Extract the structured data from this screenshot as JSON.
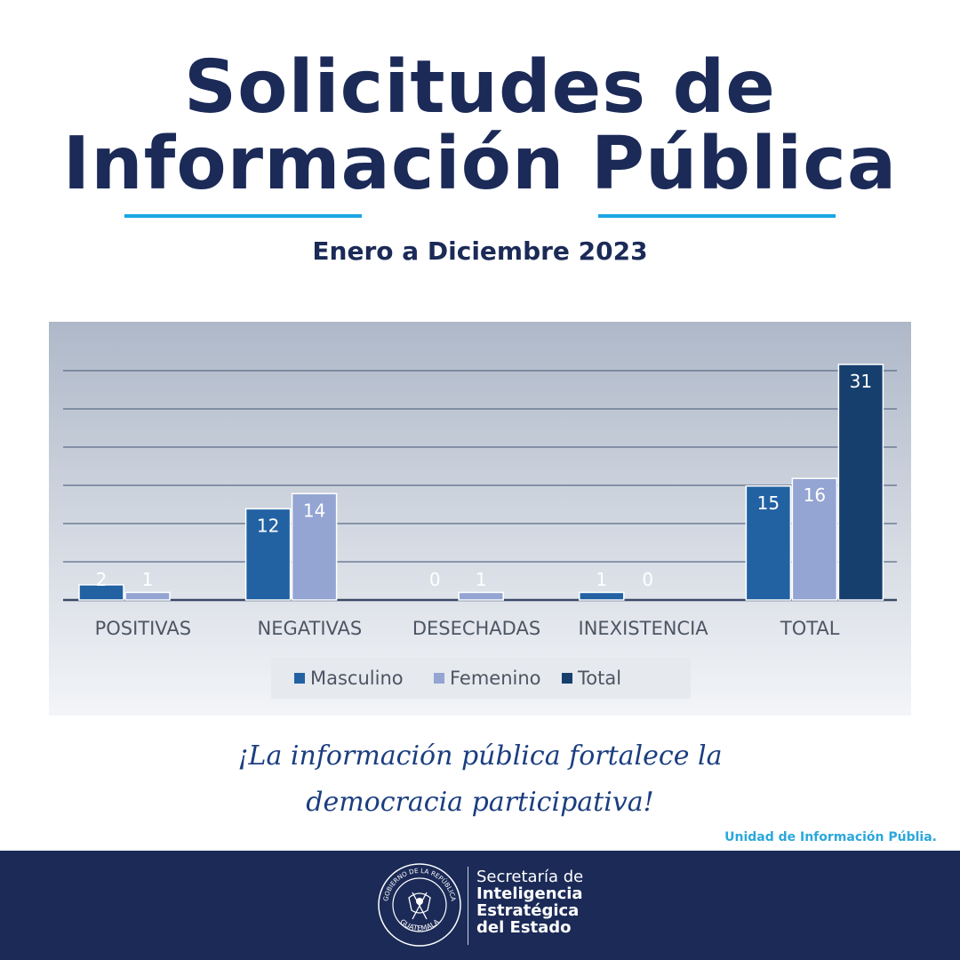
{
  "header": {
    "title_line1": "Solicitudes de",
    "title_line2": "Información Pública",
    "subtitle": "Enero a Diciembre 2023"
  },
  "chart_data": {
    "type": "bar",
    "categories": [
      "POSITIVAS",
      "NEGATIVAS",
      "DESECHADAS",
      "INEXISTENCIA",
      "TOTAL"
    ],
    "series": [
      {
        "name": "Masculino",
        "color": "#2262a3",
        "values": [
          2,
          12,
          0,
          1,
          15
        ]
      },
      {
        "name": "Femenino",
        "color": "#94a5d3",
        "values": [
          1,
          14,
          1,
          0,
          16
        ]
      },
      {
        "name": "Total",
        "color": "#163f6e",
        "values": [
          null,
          null,
          null,
          null,
          31
        ]
      }
    ],
    "ylim": [
      0,
      31
    ],
    "grid": true,
    "legend_position": "bottom"
  },
  "slogan": {
    "line1": "¡La información pública fortalece la",
    "line2": "democracia participativa!"
  },
  "unit_label": "Unidad de Información Públia.",
  "footer": {
    "seal_top": "GOBIERNO DE LA REPÚBLICA",
    "seal_bottom": "GUATEMALA",
    "line1": "Secretaría de",
    "line2": "Inteligencia",
    "line3": "Estratégica",
    "line4": "del Estado"
  }
}
